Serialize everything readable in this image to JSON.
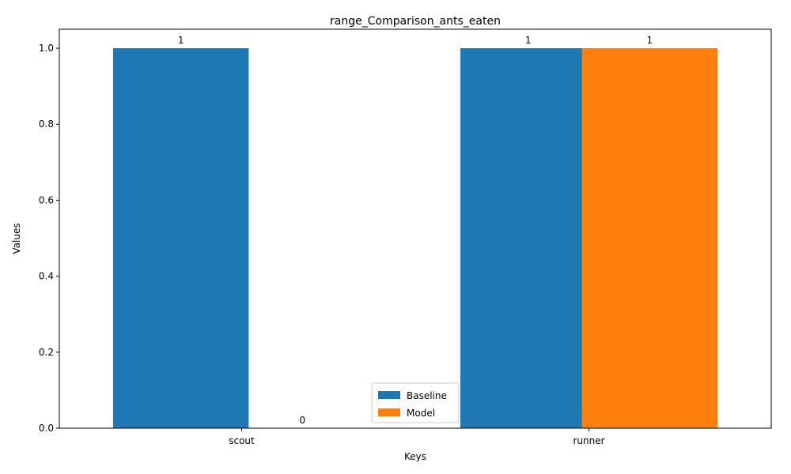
{
  "chart_data": {
    "type": "bar",
    "title": "range_Comparison_ants_eaten",
    "xlabel": "Keys",
    "ylabel": "Values",
    "categories": [
      "scout",
      "runner"
    ],
    "series": [
      {
        "name": "Baseline",
        "values": [
          1,
          1
        ],
        "labels": [
          "1",
          "1"
        ],
        "color": "#1f77b4"
      },
      {
        "name": "Model",
        "values": [
          0,
          1
        ],
        "labels": [
          "0",
          "1"
        ],
        "color": "#ff7f0e"
      }
    ],
    "ylim": [
      0,
      1.05
    ],
    "yticks": [
      {
        "value": 0.0,
        "label": "0.0"
      },
      {
        "value": 0.2,
        "label": "0.2"
      },
      {
        "value": 0.4,
        "label": "0.4"
      },
      {
        "value": 0.6,
        "label": "0.6"
      },
      {
        "value": 0.8,
        "label": "0.8"
      },
      {
        "value": 1.0,
        "label": "1.0"
      }
    ],
    "grid": false,
    "legend_position": "bottom-center"
  }
}
